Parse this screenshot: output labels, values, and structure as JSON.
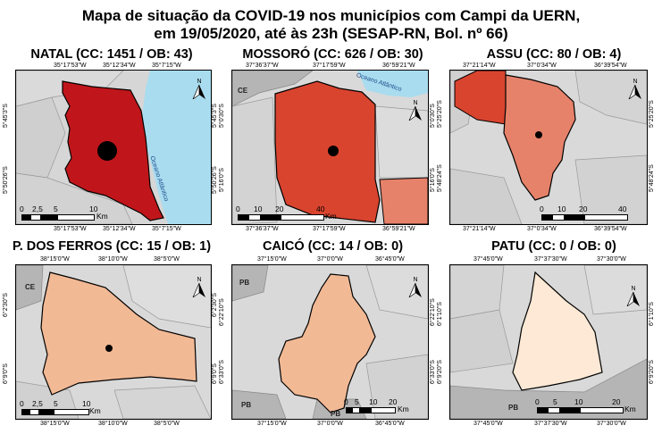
{
  "title": {
    "line1": "Mapa de situação da COVID-19 nos municípios com Campi da UERN,",
    "line2": "em 19/05/2020, até às 23h (SESAP-RN, Bol. nº 66)"
  },
  "north_symbol": "N",
  "scale_unit": "Km",
  "panels": [
    {
      "title": "NATAL (CC: 1451 / OB: 43)",
      "municipality": "Natal",
      "cc": 1451,
      "ob": 43,
      "fill": "#c0161b",
      "top_coords": [
        "35°17'53\"W",
        "35°12'34\"W",
        "35°7'15\"W"
      ],
      "bottom_coords": [
        "35°17'53\"W",
        "35°12'34\"W",
        "35°7'15\"W"
      ],
      "left_coords": [
        "5°45'3\"S",
        "5°50'26\"S"
      ],
      "right_coords": [
        "5°45'3\"S",
        "5°50'26\"S"
      ],
      "labels": [
        "Oceano Atlântico"
      ],
      "scale": [
        "0",
        "2,5",
        "5",
        "10"
      ]
    },
    {
      "title": "MOSSORÓ (CC: 626 / OB: 30)",
      "municipality": "Mossoró",
      "cc": 626,
      "ob": 30,
      "fill": "#d9442f",
      "top_coords": [
        "37°36'37\"W",
        "37°17'59\"W",
        "36°59'21\"W"
      ],
      "bottom_coords": [
        "37°36'37\"W",
        "37°17'59\"W",
        "36°59'21\"W"
      ],
      "left_coords": [
        "5°0'30\"S",
        "5°16'0\"S"
      ],
      "right_coords": [
        "5°0'30\"S",
        "5°16'0\"S"
      ],
      "labels": [
        "CE",
        "Oceano Atlântico"
      ],
      "scale": [
        "0",
        "10",
        "20",
        "40"
      ]
    },
    {
      "title": "ASSU (CC: 80 / OB: 4)",
      "municipality": "Assu",
      "cc": 80,
      "ob": 4,
      "fill": "#e6826a",
      "top_coords": [
        "37°21'14\"W",
        "37°0'34\"W",
        "36°39'54\"W"
      ],
      "bottom_coords": [
        "37°21'14\"W",
        "37°0'34\"W",
        "36°39'54\"W"
      ],
      "left_coords": [
        "5°25'20\"S",
        "5°48'24\"S"
      ],
      "right_coords": [
        "5°25'20\"S",
        "5°48'24\"S"
      ],
      "labels": [],
      "scale": [
        "0",
        "10",
        "20",
        "40"
      ]
    },
    {
      "title": "P. DOS FERROS (CC: 15 / OB: 1)",
      "municipality": "Pau dos Ferros",
      "cc": 15,
      "ob": 1,
      "fill": "#f2b995",
      "top_coords": [
        "38°15'0\"W",
        "38°10'0\"W",
        "38°5'0\"W"
      ],
      "bottom_coords": [
        "38°15'0\"W",
        "38°10'0\"W",
        "38°5'0\"W"
      ],
      "left_coords": [
        "6°2'30\"S",
        "6°9'0\"S"
      ],
      "right_coords": [
        "6°2'30\"S",
        "6°9'0\"S"
      ],
      "labels": [
        "CE"
      ],
      "scale": [
        "0",
        "2,5",
        "5",
        "10"
      ]
    },
    {
      "title": "CAICÓ (CC: 14 / OB: 0)",
      "municipality": "Caicó",
      "cc": 14,
      "ob": 0,
      "fill": "#f2b995",
      "top_coords": [
        "37°15'0\"W",
        "37°0'0\"W",
        "36°45'0\"W"
      ],
      "bottom_coords": [
        "37°15'0\"W",
        "37°0'0\"W",
        "36°45'0\"W"
      ],
      "left_coords": [
        "6°22'10\"S",
        "6°33'0\"S"
      ],
      "right_coords": [
        "6°22'10\"S",
        "6°33'0\"S"
      ],
      "labels": [
        "PB",
        "PB",
        "PB"
      ],
      "scale": [
        "0",
        "5",
        "10",
        "20"
      ]
    },
    {
      "title": "PATU (CC: 0 / OB: 0)",
      "municipality": "Patu",
      "cc": 0,
      "ob": 0,
      "fill": "#fde9d5",
      "top_coords": [
        "37°45'0\"W",
        "37°37'30\"W",
        "37°30'0\"W"
      ],
      "bottom_coords": [
        "37°45'0\"W",
        "37°37'30\"W",
        "37°30'0\"W"
      ],
      "left_coords": [
        "6°1'10\"S",
        "6°9'20\"S"
      ],
      "right_coords": [
        "6°1'10\"S",
        "6°9'20\"S"
      ],
      "labels": [
        "PB"
      ],
      "scale": [
        "0",
        "5",
        "10",
        "20"
      ]
    }
  ]
}
